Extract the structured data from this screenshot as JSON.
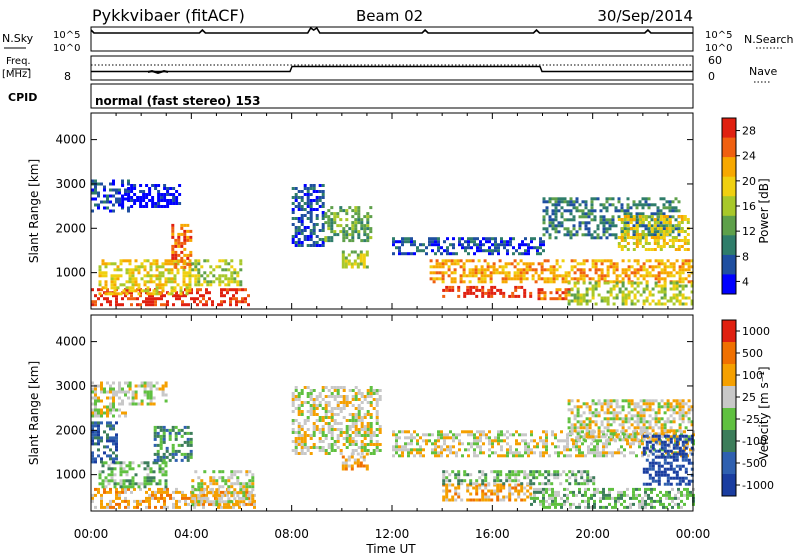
{
  "header": {
    "station": "Pykkvibaer (fitACF)",
    "beam": "Beam 02",
    "date": "30/Sep/2014"
  },
  "top_panels": {
    "nsky_label": "N.Sky",
    "nsky_ticks": [
      "10^5",
      "10^0"
    ],
    "nsearch_ticks": [
      "10^5",
      "10^0"
    ],
    "nsearch_label": "N.Search",
    "freq_label_1": "Freq.",
    "freq_label_2": "[MHz]",
    "freq_ticks": [
      "8"
    ],
    "nave_ticks": [
      "60",
      "0"
    ],
    "nave_label": "Nave",
    "cpid_label": "CPID",
    "cpid_text": "normal (fast stereo) 153"
  },
  "chart_data": [
    {
      "type": "heatmap",
      "name": "power",
      "ylabel": "Slant Range [km]",
      "yticks": [
        1000,
        2000,
        3000,
        4000
      ],
      "ylim": [
        180,
        4600
      ],
      "xlim_hours": [
        0,
        24
      ],
      "colorbar": {
        "label": "Power [dB]",
        "ticks": [
          "28",
          "24",
          "20",
          "16",
          "12",
          "8",
          "4"
        ],
        "colors": [
          "#0000ff",
          "#1f4fa0",
          "#2f7d6a",
          "#5ea04a",
          "#a8c82a",
          "#f0d010",
          "#f7a800",
          "#f06010",
          "#e02010"
        ]
      },
      "regions": [
        {
          "t0": 0.0,
          "t1": 6.3,
          "r0": 250,
          "r1": 650,
          "level": 8
        },
        {
          "t0": 0.3,
          "t1": 4.0,
          "r0": 500,
          "r1": 1300,
          "level": 5
        },
        {
          "t0": 0.0,
          "t1": 1.5,
          "r0": 2400,
          "r1": 3100,
          "level": 1
        },
        {
          "t0": 1.2,
          "t1": 3.5,
          "r0": 2500,
          "r1": 3000,
          "level": 0
        },
        {
          "t0": 3.2,
          "t1": 4.0,
          "r0": 1100,
          "r1": 2100,
          "level": 7
        },
        {
          "t0": 4.0,
          "t1": 6.0,
          "r0": 700,
          "r1": 1300,
          "level": 4
        },
        {
          "t0": 8.0,
          "t1": 9.2,
          "r0": 1600,
          "r1": 3000,
          "level": 1
        },
        {
          "t0": 9.3,
          "t1": 11.2,
          "r0": 1700,
          "r1": 2500,
          "level": 3
        },
        {
          "t0": 10.0,
          "t1": 11.0,
          "r0": 1150,
          "r1": 1500,
          "level": 4
        },
        {
          "t0": 12.0,
          "t1": 18.0,
          "r0": 1400,
          "r1": 1800,
          "level": 1
        },
        {
          "t0": 13.5,
          "t1": 24.0,
          "r0": 800,
          "r1": 1300,
          "level": 6
        },
        {
          "t0": 14.0,
          "t1": 17.5,
          "r0": 450,
          "r1": 700,
          "level": 8
        },
        {
          "t0": 17.8,
          "t1": 19.2,
          "r0": 400,
          "r1": 650,
          "level": 7
        },
        {
          "t0": 18.0,
          "t1": 23.5,
          "r0": 1800,
          "r1": 2700,
          "level": 2
        },
        {
          "t0": 21.0,
          "t1": 23.8,
          "r0": 1500,
          "r1": 2300,
          "level": 5
        },
        {
          "t0": 19.0,
          "t1": 24.0,
          "r0": 300,
          "r1": 800,
          "level": 4
        }
      ]
    },
    {
      "type": "heatmap",
      "name": "velocity",
      "ylabel": "Slant Range [km]",
      "yticks": [
        1000,
        2000,
        3000,
        4000
      ],
      "ylim": [
        180,
        4600
      ],
      "xlim_hours": [
        0,
        24
      ],
      "xticks": [
        "00:00",
        "04:00",
        "08:00",
        "12:00",
        "16:00",
        "20:00",
        "00:00"
      ],
      "xlabel": "Time UT",
      "colorbar": {
        "label": "Velocity [m s⁻¹]",
        "ticks": [
          "1000",
          "500",
          "100",
          "25",
          "-25",
          "-100",
          "-500",
          "-1000"
        ],
        "colors": [
          "#1a3da0",
          "#2f60b0",
          "#3c7d5a",
          "#5fc040",
          "#c8c8c8",
          "#f5a000",
          "#f07000",
          "#e02010"
        ]
      },
      "regions": [
        {
          "t0": 0.0,
          "t1": 6.5,
          "r0": 250,
          "r1": 700,
          "level": 5
        },
        {
          "t0": 0.3,
          "t1": 3.0,
          "r0": 700,
          "r1": 1300,
          "level": 3
        },
        {
          "t0": 0.0,
          "t1": 1.5,
          "r0": 2300,
          "r1": 3100,
          "level": 4
        },
        {
          "t0": 1.5,
          "t1": 3.0,
          "r0": 2600,
          "r1": 3100,
          "level": 4
        },
        {
          "t0": 2.5,
          "t1": 4.0,
          "r0": 1300,
          "r1": 2100,
          "level": 2
        },
        {
          "t0": 0.0,
          "t1": 1.0,
          "r0": 1300,
          "r1": 2200,
          "level": 1
        },
        {
          "t0": 4.0,
          "t1": 6.5,
          "r0": 300,
          "r1": 1100,
          "level": 4
        },
        {
          "t0": 8.0,
          "t1": 11.5,
          "r0": 1500,
          "r1": 3000,
          "level": 4
        },
        {
          "t0": 10.0,
          "t1": 11.0,
          "r0": 1150,
          "r1": 1500,
          "level": 5
        },
        {
          "t0": 12.0,
          "t1": 24.0,
          "r0": 1400,
          "r1": 2000,
          "level": 4
        },
        {
          "t0": 14.0,
          "t1": 17.5,
          "r0": 400,
          "r1": 800,
          "level": 5
        },
        {
          "t0": 14.0,
          "t1": 20.0,
          "r0": 800,
          "r1": 1100,
          "level": 3
        },
        {
          "t0": 17.5,
          "t1": 24.0,
          "r0": 250,
          "r1": 700,
          "level": 3
        },
        {
          "t0": 19.0,
          "t1": 24.0,
          "r0": 1800,
          "r1": 2700,
          "level": 4
        },
        {
          "t0": 22.0,
          "t1": 24.0,
          "r0": 800,
          "r1": 1900,
          "level": 0
        }
      ]
    }
  ]
}
